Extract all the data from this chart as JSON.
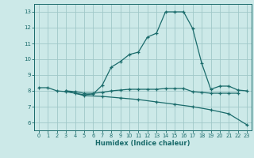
{
  "xlabel": "Humidex (Indice chaleur)",
  "bg_color": "#cce9e8",
  "grid_color": "#a0c8c8",
  "line_color": "#1a6b6b",
  "xlim": [
    -0.5,
    23.5
  ],
  "ylim": [
    5.5,
    13.5
  ],
  "yticks": [
    6,
    7,
    8,
    9,
    10,
    11,
    12,
    13
  ],
  "xticks": [
    0,
    1,
    2,
    3,
    4,
    5,
    6,
    7,
    8,
    9,
    10,
    11,
    12,
    13,
    14,
    15,
    16,
    17,
    18,
    19,
    20,
    21,
    22,
    23
  ],
  "line1_x": [
    0,
    1,
    2,
    3,
    4,
    5,
    6,
    7,
    8,
    9,
    10,
    11,
    12,
    13,
    14,
    15,
    16,
    17,
    18,
    19,
    20,
    21,
    22,
    23
  ],
  "line1_y": [
    8.2,
    8.2,
    8.0,
    7.95,
    7.85,
    7.75,
    7.8,
    8.35,
    9.5,
    9.85,
    10.3,
    10.45,
    11.4,
    11.65,
    13.0,
    13.0,
    13.0,
    11.95,
    9.75,
    8.1,
    8.3,
    8.3,
    8.05,
    8.0
  ],
  "line2_x": [
    3,
    4,
    5,
    6,
    7,
    8,
    9,
    10,
    11,
    12,
    13,
    14,
    15,
    16,
    17,
    18,
    19,
    20,
    21,
    22
  ],
  "line2_y": [
    8.0,
    7.95,
    7.85,
    7.85,
    7.9,
    8.0,
    8.05,
    8.1,
    8.1,
    8.1,
    8.1,
    8.15,
    8.15,
    8.15,
    7.95,
    7.9,
    7.85,
    7.85,
    7.85,
    7.85
  ],
  "line3_x": [
    3,
    5,
    7,
    9,
    11,
    13,
    15,
    17,
    19,
    21,
    23
  ],
  "line3_y": [
    8.0,
    7.7,
    7.65,
    7.55,
    7.45,
    7.3,
    7.15,
    7.0,
    6.8,
    6.55,
    5.85
  ]
}
